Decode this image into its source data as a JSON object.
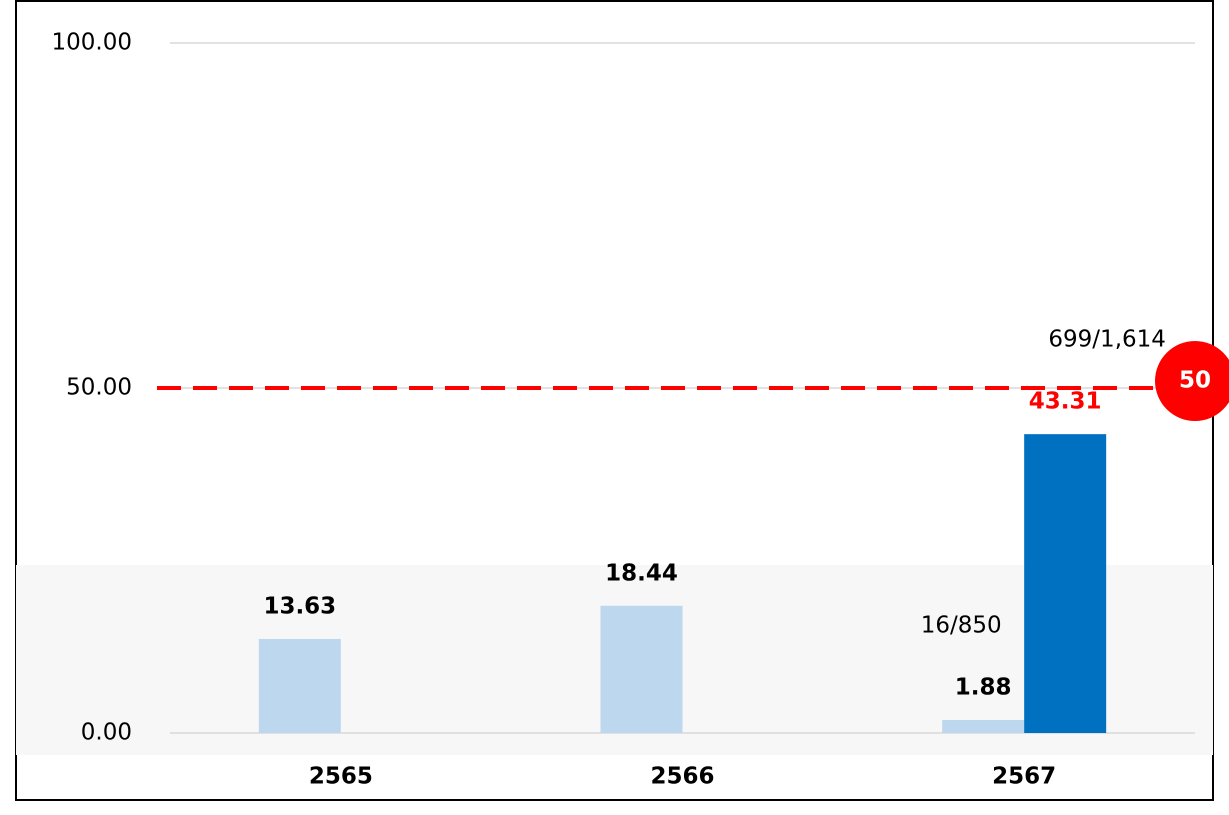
{
  "chart_data": {
    "type": "bar",
    "categories": [
      "2565",
      "2566",
      "2567"
    ],
    "series": [
      {
        "color": "#bdd7ee",
        "label_color": "#000000",
        "values": [
          13.63,
          18.44,
          1.88
        ],
        "notes": [
          null,
          null,
          "16/850"
        ]
      },
      {
        "color": "#0070c0",
        "label_color": "#ff0000",
        "values": [
          null,
          null,
          43.31
        ],
        "notes": [
          null,
          null,
          "699/1,614"
        ]
      }
    ],
    "ylim": [
      0,
      100
    ],
    "yticks": [
      {
        "value": 0,
        "label": "0.00"
      },
      {
        "value": 50,
        "label": "50.00"
      },
      {
        "value": 100,
        "label": "100.00"
      }
    ],
    "grid": true,
    "target": 50,
    "target_color": "#ff0000"
  }
}
